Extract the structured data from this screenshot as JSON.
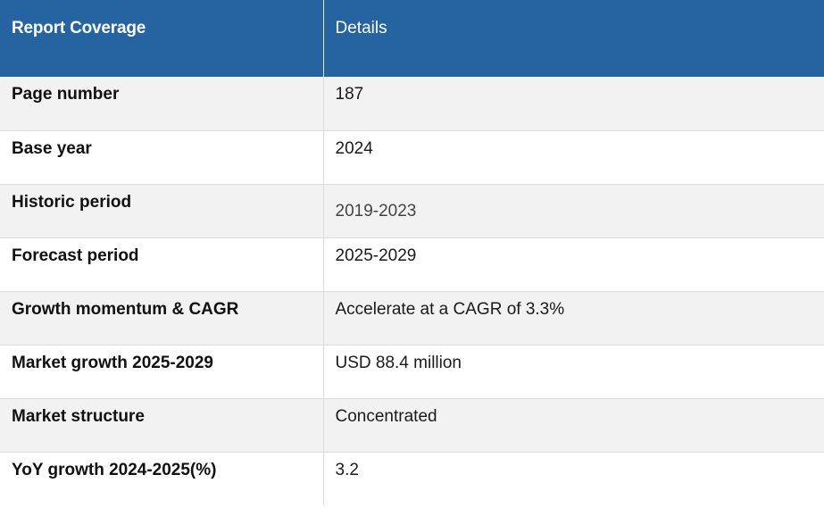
{
  "table": {
    "headers": [
      "Report Coverage",
      "Details"
    ],
    "rows": [
      {
        "label": "Page number",
        "value": "187"
      },
      {
        "label": "Base year",
        "value": "2024"
      },
      {
        "label": "Historic period",
        "value": "2019-2023"
      },
      {
        "label": "Forecast period",
        "value": "2025-2029"
      },
      {
        "label": "Growth momentum & CAGR",
        "value": "Accelerate at a CAGR of 3.3%"
      },
      {
        "label": "Market growth 2025-2029",
        "value": "USD 88.4 million"
      },
      {
        "label": "Market structure",
        "value": "Concentrated"
      },
      {
        "label": "YoY growth 2024-2025(%)",
        "value": "3.2"
      }
    ]
  }
}
